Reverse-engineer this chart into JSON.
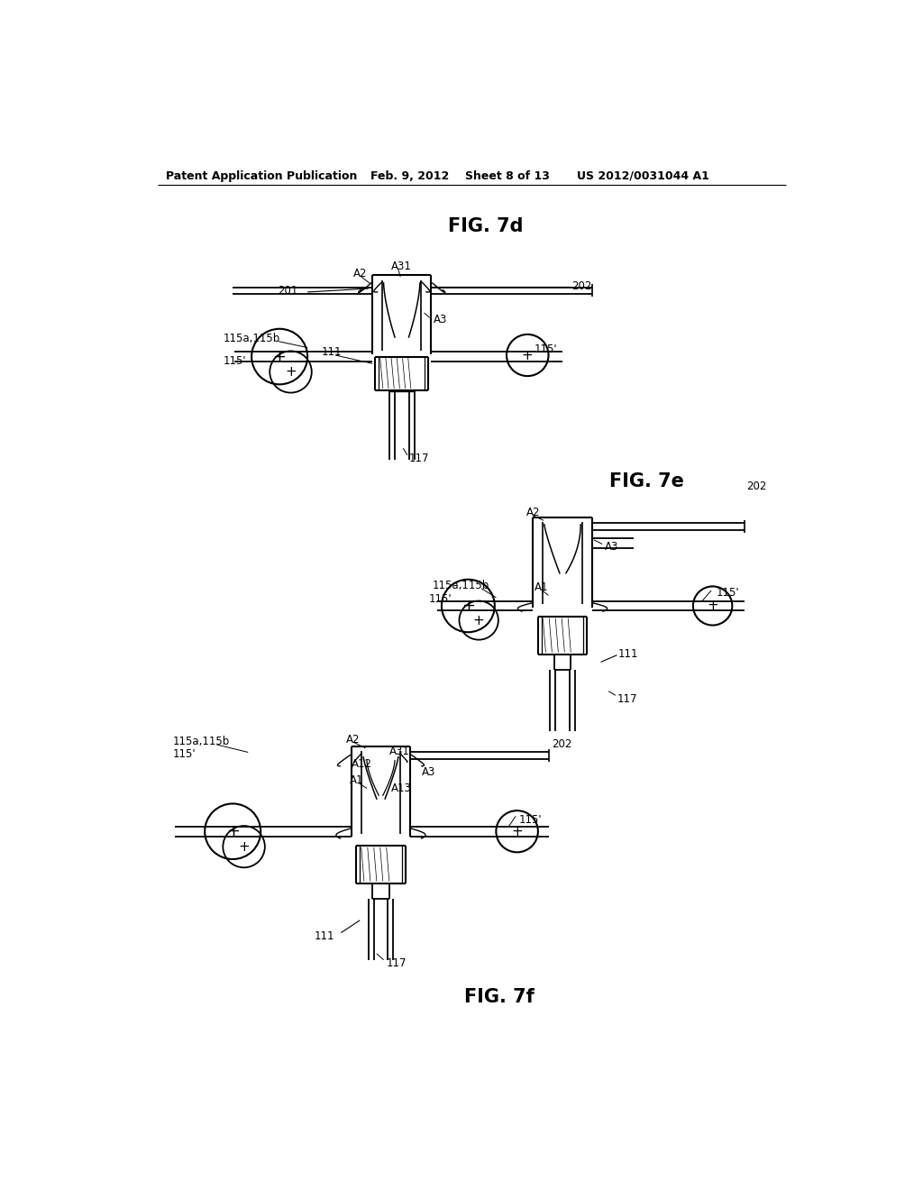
{
  "background_color": "#ffffff",
  "fig_width": 10.24,
  "fig_height": 13.2,
  "header_text": "Patent Application Publication",
  "header_date": "Feb. 9, 2012",
  "header_sheet": "Sheet 8 of 13",
  "header_patent": "US 2012/0031044 A1",
  "fig7d_title": "FIG. 7d",
  "fig7e_title": "FIG. 7e",
  "fig7f_title": "FIG. 7f",
  "line_color": "#000000",
  "label_fontsize": 8.5,
  "title_fontsize": 15
}
